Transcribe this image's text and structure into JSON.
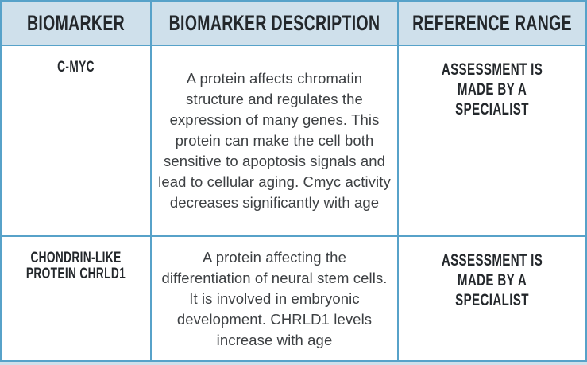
{
  "table": {
    "headers": [
      {
        "label": "BIOMARKER"
      },
      {
        "label": "BIOMARKER DESCRIPTION"
      },
      {
        "label": "REFERENCE RANGE"
      }
    ],
    "rows": [
      {
        "biomarker": "C-MYC",
        "description": "A protein affects chromatin structure and regulates the expression of many genes. This protein can make the cell both sensitive to apoptosis signals and lead to cellular aging. Cmyc activity decreases significantly with age",
        "reference_range": "ASSESSMENT IS MADE BY A SPECIALIST"
      },
      {
        "biomarker": "CHONDRIN-LIKE PROTEIN CHRLD1",
        "description": "A protein affecting the differentiation of neural stem cells. It is involved in embryonic development. CHRLD1 levels increase with age",
        "reference_range": "ASSESSMENT IS MADE BY A SPECIALIST"
      }
    ],
    "colors": {
      "header_bg": "#cfe0eb",
      "grid_line": "#57a2c9",
      "heading_text": "#23272b",
      "body_text": "#3d4043"
    }
  }
}
